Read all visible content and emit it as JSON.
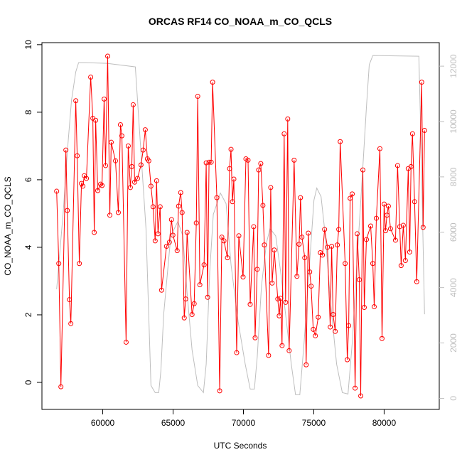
{
  "chart_data": {
    "type": "line",
    "title": "ORCAS RF14 CO_NOAA_m_CO_QCLS",
    "x_label": "UTC Seconds",
    "y_label": "CO_NOAA_m_CO_QCLS",
    "xlim": [
      55679,
      83918
    ],
    "ylim": [
      -0.8,
      10.06
    ],
    "y2lim": [
      -400,
      12850
    ],
    "xticks": [
      60000,
      65000,
      70000,
      75000,
      80000
    ],
    "yticks": [
      0,
      2,
      4,
      6,
      8,
      10
    ],
    "y2ticks": [
      0,
      2000,
      4000,
      6000,
      8000,
      10000,
      12000
    ],
    "y2_color": "#bebebe",
    "series": [
      {
        "color": "#bebebe",
        "axis": "y2",
        "marker": "none",
        "x": [
          56725,
          57179,
          57531,
          57783,
          58086,
          58287,
          58791,
          60302,
          62317,
          63073,
          63426,
          63728,
          63980,
          64131,
          64333,
          64836,
          65340,
          65693,
          65995,
          66348,
          66751,
          67154,
          67355,
          67607,
          67859,
          68363,
          68766,
          69118,
          69622,
          70126,
          70479,
          70781,
          70982,
          71285,
          71637,
          71889,
          72292,
          72645,
          72998,
          73401,
          73703,
          74006,
          74308,
          74661,
          75013,
          75215,
          75517,
          75819,
          76222,
          76625,
          77028,
          77431,
          77733,
          78086,
          78438,
          78741,
          78942,
          79194,
          82469,
          82620,
          82872
        ],
        "values": [
          3940,
          6644,
          9219,
          10764,
          11794,
          12128,
          12128,
          12103,
          11974,
          6129,
          464,
          206,
          206,
          979,
          3039,
          5871,
          6386,
          5871,
          3811,
          1751,
          464,
          206,
          1236,
          4584,
          6644,
          7416,
          7030,
          4841,
          2781,
          1236,
          335,
          335,
          1494,
          4069,
          5614,
          6129,
          5871,
          4584,
          3039,
          1236,
          129,
          129,
          2009,
          4584,
          7159,
          7596,
          7287,
          5871,
          3296,
          1236,
          206,
          155,
          2009,
          5099,
          7931,
          10506,
          12051,
          12386,
          12360,
          9219,
          3039
        ]
      },
      {
        "color": "#ff0000",
        "marker": "circle",
        "x": [
          56725,
          56876,
          57027,
          57380,
          57480,
          57632,
          57733,
          58086,
          58186,
          58337,
          58489,
          58589,
          58690,
          58841,
          59144,
          59295,
          59395,
          59496,
          59647,
          59849,
          59950,
          60101,
          60202,
          60353,
          60504,
          60605,
          60907,
          61108,
          61259,
          61360,
          61662,
          61814,
          61965,
          62065,
          62166,
          62267,
          62469,
          62720,
          62872,
          63023,
          63174,
          63275,
          63426,
          63577,
          63728,
          63829,
          63929,
          64081,
          64181,
          64534,
          64736,
          64887,
          64987,
          65290,
          65390,
          65542,
          65642,
          65793,
          65894,
          65995,
          66348,
          66499,
          66650,
          66751,
          66902,
          67204,
          67355,
          67456,
          67557,
          67708,
          67809,
          68111,
          68312,
          68463,
          68615,
          68866,
          69018,
          69118,
          69219,
          69320,
          69521,
          69673,
          69975,
          70176,
          70327,
          70479,
          70730,
          70831,
          70982,
          71083,
          71234,
          71385,
          71486,
          71788,
          71940,
          72040,
          72191,
          72443,
          72544,
          72645,
          72746,
          72897,
          72997,
          73149,
          73249,
          73602,
          73804,
          73955,
          74055,
          74156,
          74358,
          74458,
          74610,
          74710,
          74811,
          74962,
          75113,
          75315,
          75466,
          75617,
          75768,
          75970,
          76171,
          76272,
          76373,
          76524,
          76675,
          76776,
          76877,
          77229,
          77380,
          77481,
          77582,
          77733,
          77935,
          78086,
          78237,
          78338,
          78489,
          78589,
          78741,
          79043,
          79194,
          79295,
          79446,
          79698,
          79849,
          80000,
          80101,
          80202,
          80302,
          80453,
          80806,
          80957,
          81108,
          81209,
          81360,
          81511,
          81713,
          81814,
          81914,
          82015,
          82166,
          82317,
          82670,
          82771,
          82872
        ],
        "values": [
          5.66,
          3.52,
          -0.13,
          6.88,
          5.09,
          2.45,
          1.74,
          8.34,
          6.71,
          3.52,
          5.89,
          5.81,
          6.12,
          6.04,
          9.04,
          7.82,
          4.44,
          7.76,
          5.68,
          5.87,
          5.83,
          8.39,
          6.42,
          9.66,
          4.95,
          7.11,
          6.56,
          5.03,
          7.63,
          7.3,
          1.19,
          7.0,
          5.77,
          6.39,
          8.22,
          5.93,
          6.04,
          6.44,
          6.88,
          7.48,
          6.62,
          6.56,
          5.81,
          5.2,
          4.19,
          5.97,
          4.4,
          5.2,
          2.73,
          4.03,
          4.15,
          4.82,
          4.36,
          3.9,
          5.22,
          5.62,
          5.03,
          1.91,
          2.47,
          4.44,
          2.01,
          2.33,
          4.72,
          8.47,
          2.89,
          3.48,
          6.5,
          2.52,
          6.52,
          6.52,
          8.89,
          5.47,
          -0.25,
          4.3,
          4.19,
          3.69,
          6.33,
          6.9,
          5.35,
          6.02,
          0.88,
          4.34,
          3.12,
          6.62,
          6.58,
          2.31,
          4.61,
          1.32,
          3.35,
          6.29,
          6.48,
          5.24,
          4.07,
          0.8,
          5.77,
          2.94,
          3.92,
          2.47,
          1.97,
          2.49,
          1.09,
          7.36,
          2.37,
          7.8,
          0.94,
          6.58,
          3.14,
          4.09,
          5.47,
          4.3,
          3.69,
          0.52,
          4.42,
          3.27,
          2.85,
          1.57,
          1.38,
          1.93,
          3.84,
          3.77,
          4.53,
          4.0,
          1.64,
          4.03,
          2.01,
          1.51,
          4.07,
          4.53,
          7.13,
          3.52,
          0.67,
          1.68,
          5.45,
          5.58,
          -0.17,
          4.4,
          3.04,
          -0.4,
          6.29,
          2.22,
          4.23,
          4.63,
          3.52,
          2.24,
          4.86,
          6.92,
          1.3,
          5.28,
          4.49,
          4.95,
          5.22,
          4.55,
          4.21,
          6.42,
          4.61,
          3.46,
          4.65,
          3.61,
          6.33,
          3.86,
          6.39,
          7.36,
          5.35,
          2.98,
          8.89,
          4.59,
          7.46
        ]
      }
    ]
  }
}
